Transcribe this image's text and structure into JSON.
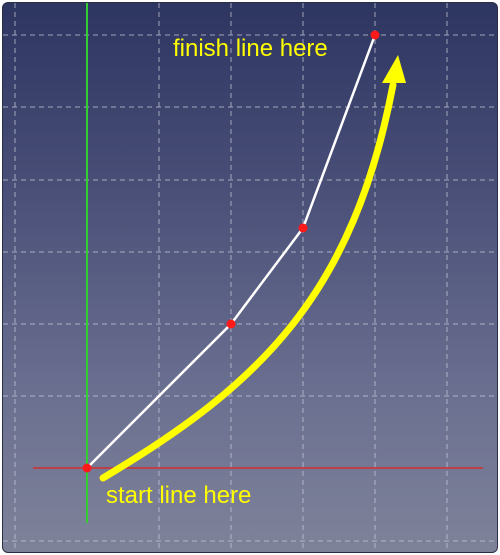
{
  "labels": {
    "finish": "finish line here",
    "start": "start line here"
  },
  "colors": {
    "annotation": "#ffff00",
    "polyline": "#ffffff",
    "points": "#ff1a1a",
    "x_axis": "#d03030",
    "y_axis": "#33cc33",
    "grid": "#c8c8d8"
  },
  "sketch": {
    "point_count": 4
  }
}
